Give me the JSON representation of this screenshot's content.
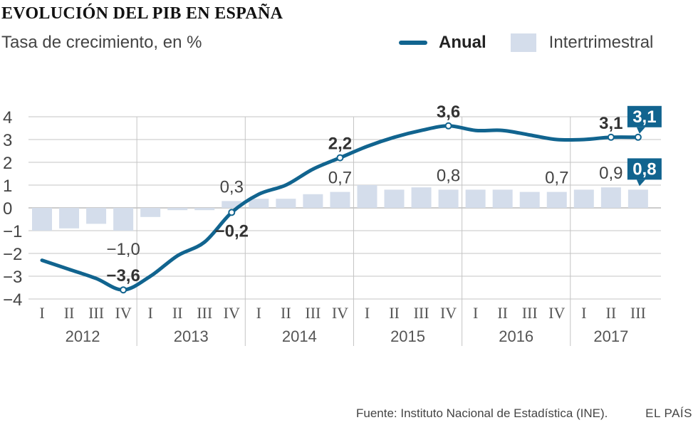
{
  "title": "EVOLUCIÓN DEL PIB EN ESPAÑA",
  "subtitle": "Tasa de crecimiento, en %",
  "legend": {
    "annual": "Anual",
    "quarterly": "Intertrimestral"
  },
  "footer": {
    "source": "Fuente: Instituto Nacional de Estadística (INE).",
    "brand": "EL PAÍS"
  },
  "colors": {
    "line": "#11648f",
    "bar": "#d4ddeb",
    "grid": "#bbbbbb",
    "label_dark": "#333333",
    "highlight_text": "#ffffff"
  },
  "chart_data": {
    "type": "bar+line",
    "title": "EVOLUCIÓN DEL PIB EN ESPAÑA",
    "subtitle": "Tasa de crecimiento, en %",
    "ylim": [
      -4,
      4
    ],
    "yticks": [
      "4",
      "3",
      "2",
      "1",
      "0",
      "−1",
      "−2",
      "−3",
      "−4"
    ],
    "ytick_values": [
      4,
      3,
      2,
      1,
      0,
      -1,
      -2,
      -3,
      -4
    ],
    "quarters": [
      "I",
      "II",
      "III",
      "IV",
      "I",
      "II",
      "III",
      "IV",
      "I",
      "II",
      "III",
      "IV",
      "I",
      "II",
      "III",
      "IV",
      "I",
      "II",
      "III",
      "IV",
      "I",
      "II",
      "III"
    ],
    "years": [
      {
        "label": "2012",
        "start": 0,
        "end": 3
      },
      {
        "label": "2013",
        "start": 4,
        "end": 7
      },
      {
        "label": "2014",
        "start": 8,
        "end": 11
      },
      {
        "label": "2015",
        "start": 12,
        "end": 15
      },
      {
        "label": "2016",
        "start": 16,
        "end": 19
      },
      {
        "label": "2017",
        "start": 20,
        "end": 22
      }
    ],
    "series": [
      {
        "name": "Intertrimestral",
        "kind": "bar",
        "values": [
          -1.0,
          -0.9,
          -0.7,
          -1.0,
          -0.4,
          -0.1,
          -0.1,
          0.3,
          0.4,
          0.4,
          0.6,
          0.7,
          1.0,
          0.8,
          0.9,
          0.8,
          0.8,
          0.8,
          0.7,
          0.7,
          0.8,
          0.9,
          0.8
        ]
      },
      {
        "name": "Anual",
        "kind": "line",
        "values": [
          -2.3,
          -2.7,
          -3.1,
          -3.6,
          -3.0,
          -2.1,
          -1.5,
          -0.2,
          0.6,
          1.0,
          1.7,
          2.2,
          2.7,
          3.1,
          3.4,
          3.6,
          3.4,
          3.4,
          3.2,
          3.0,
          3.0,
          3.1,
          3.1
        ]
      }
    ],
    "annotations": [
      {
        "series": "Anual",
        "index": 3,
        "text": "−3,6",
        "style": "bold",
        "pos": "above"
      },
      {
        "series": "Anual",
        "index": 7,
        "text": "−0,2",
        "style": "bold",
        "pos": "below"
      },
      {
        "series": "Anual",
        "index": 11,
        "text": "2,2",
        "style": "bold",
        "pos": "above"
      },
      {
        "series": "Anual",
        "index": 15,
        "text": "3,6",
        "style": "bold",
        "pos": "above"
      },
      {
        "series": "Anual",
        "index": 21,
        "text": "3,1",
        "style": "bold",
        "pos": "above"
      },
      {
        "series": "Anual",
        "index": 22,
        "text": "3,1",
        "style": "highlight",
        "pos": "above"
      },
      {
        "series": "Intertrimestral",
        "index": 3,
        "text": "−1,0",
        "style": "normal",
        "pos": "below"
      },
      {
        "series": "Intertrimestral",
        "index": 7,
        "text": "0,3",
        "style": "normal",
        "pos": "above"
      },
      {
        "series": "Intertrimestral",
        "index": 11,
        "text": "0,7",
        "style": "normal",
        "pos": "above"
      },
      {
        "series": "Intertrimestral",
        "index": 15,
        "text": "0,8",
        "style": "normal",
        "pos": "above"
      },
      {
        "series": "Intertrimestral",
        "index": 19,
        "text": "0,7",
        "style": "normal",
        "pos": "above"
      },
      {
        "series": "Intertrimestral",
        "index": 21,
        "text": "0,9",
        "style": "normal",
        "pos": "above"
      },
      {
        "series": "Intertrimestral",
        "index": 22,
        "text": "0,8",
        "style": "highlight",
        "pos": "above"
      }
    ]
  }
}
